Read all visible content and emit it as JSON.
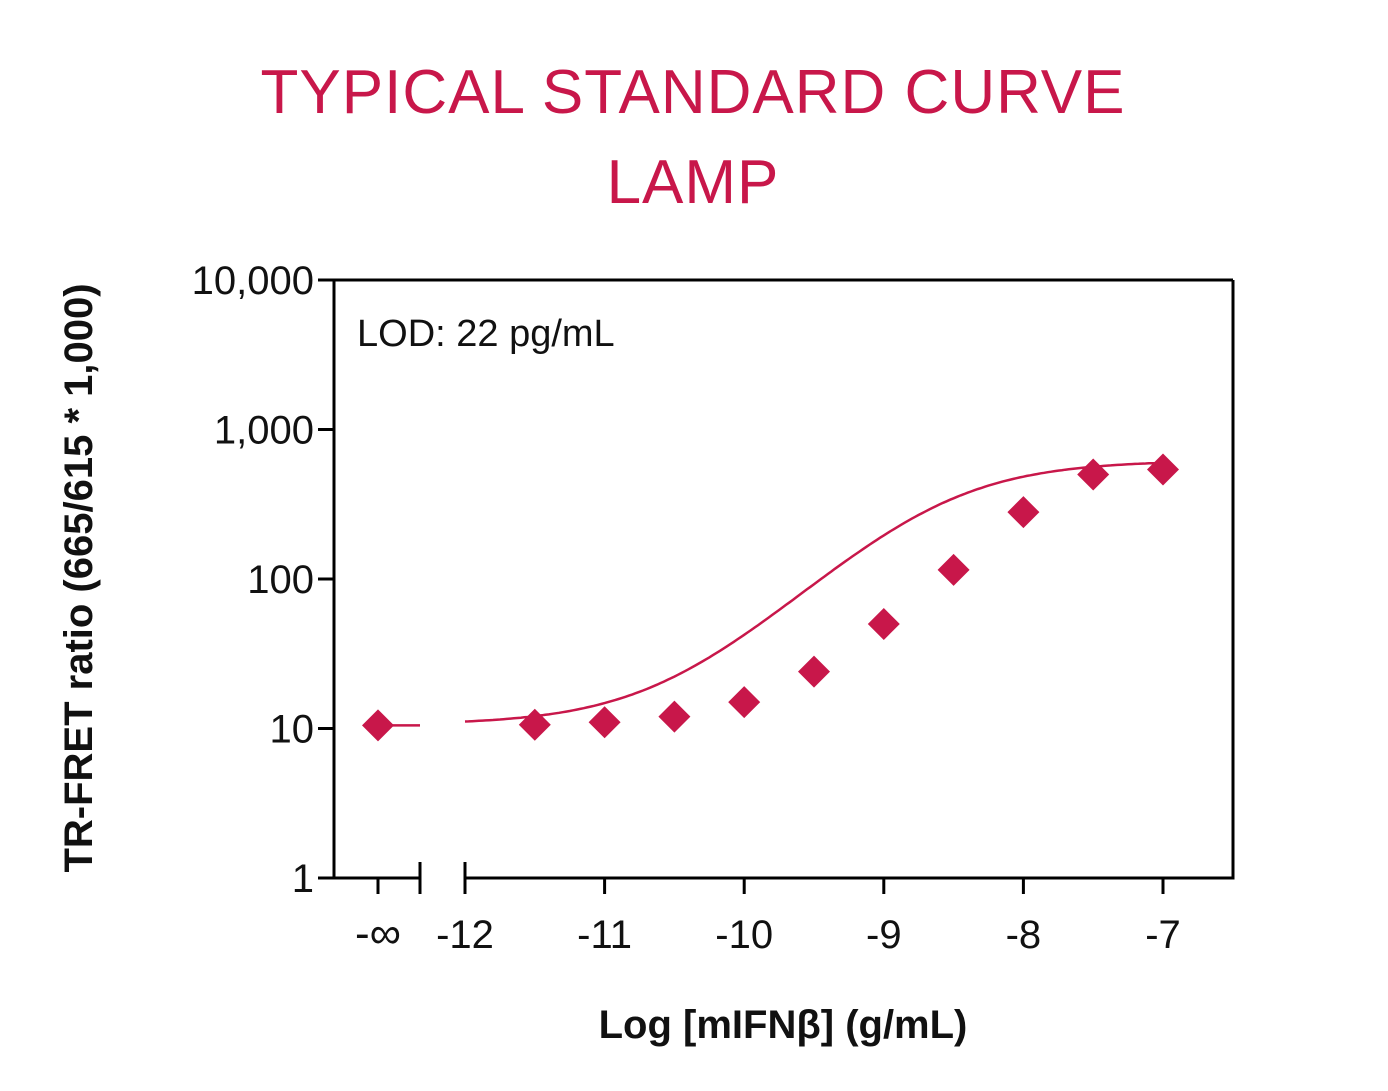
{
  "chart_data": {
    "type": "scatter",
    "title_lines": [
      "TYPICAL STANDARD CURVE",
      "LAMP"
    ],
    "xlabel": "Log [mIFNβ] (g/mL)",
    "ylabel": "TR-FRET ratio (665/615 * 1,000)",
    "annotation": "LOD: 22 pg/mL",
    "y_scale": "log",
    "ylim": [
      1,
      10000
    ],
    "y_ticks": [
      {
        "value": 1,
        "label": "1"
      },
      {
        "value": 10,
        "label": "10"
      },
      {
        "value": 100,
        "label": "100"
      },
      {
        "value": 1000,
        "label": "1,000"
      },
      {
        "value": 10000,
        "label": "10,000"
      }
    ],
    "x_ticks": [
      {
        "value": "-inf",
        "label": "-∞"
      },
      {
        "value": -12,
        "label": "-12"
      },
      {
        "value": -11,
        "label": "-11"
      },
      {
        "value": -10,
        "label": "-10"
      },
      {
        "value": -9,
        "label": "-9"
      },
      {
        "value": -8,
        "label": "-8"
      },
      {
        "value": -7,
        "label": "-7"
      }
    ],
    "axis_break": true,
    "series": [
      {
        "color": "#c8174a",
        "marker": "diamond",
        "points": [
          {
            "x": "-inf",
            "y": 10.5
          },
          {
            "x": -11.5,
            "y": 10.6
          },
          {
            "x": -11.0,
            "y": 11.0
          },
          {
            "x": -10.5,
            "y": 12.0
          },
          {
            "x": -10.0,
            "y": 15.0
          },
          {
            "x": -9.5,
            "y": 24.0
          },
          {
            "x": -9.0,
            "y": 50.0
          },
          {
            "x": -8.5,
            "y": 115.0
          },
          {
            "x": -8.0,
            "y": 280.0
          },
          {
            "x": -7.5,
            "y": 500.0
          },
          {
            "x": -7.0,
            "y": 540.0
          }
        ]
      }
    ]
  }
}
